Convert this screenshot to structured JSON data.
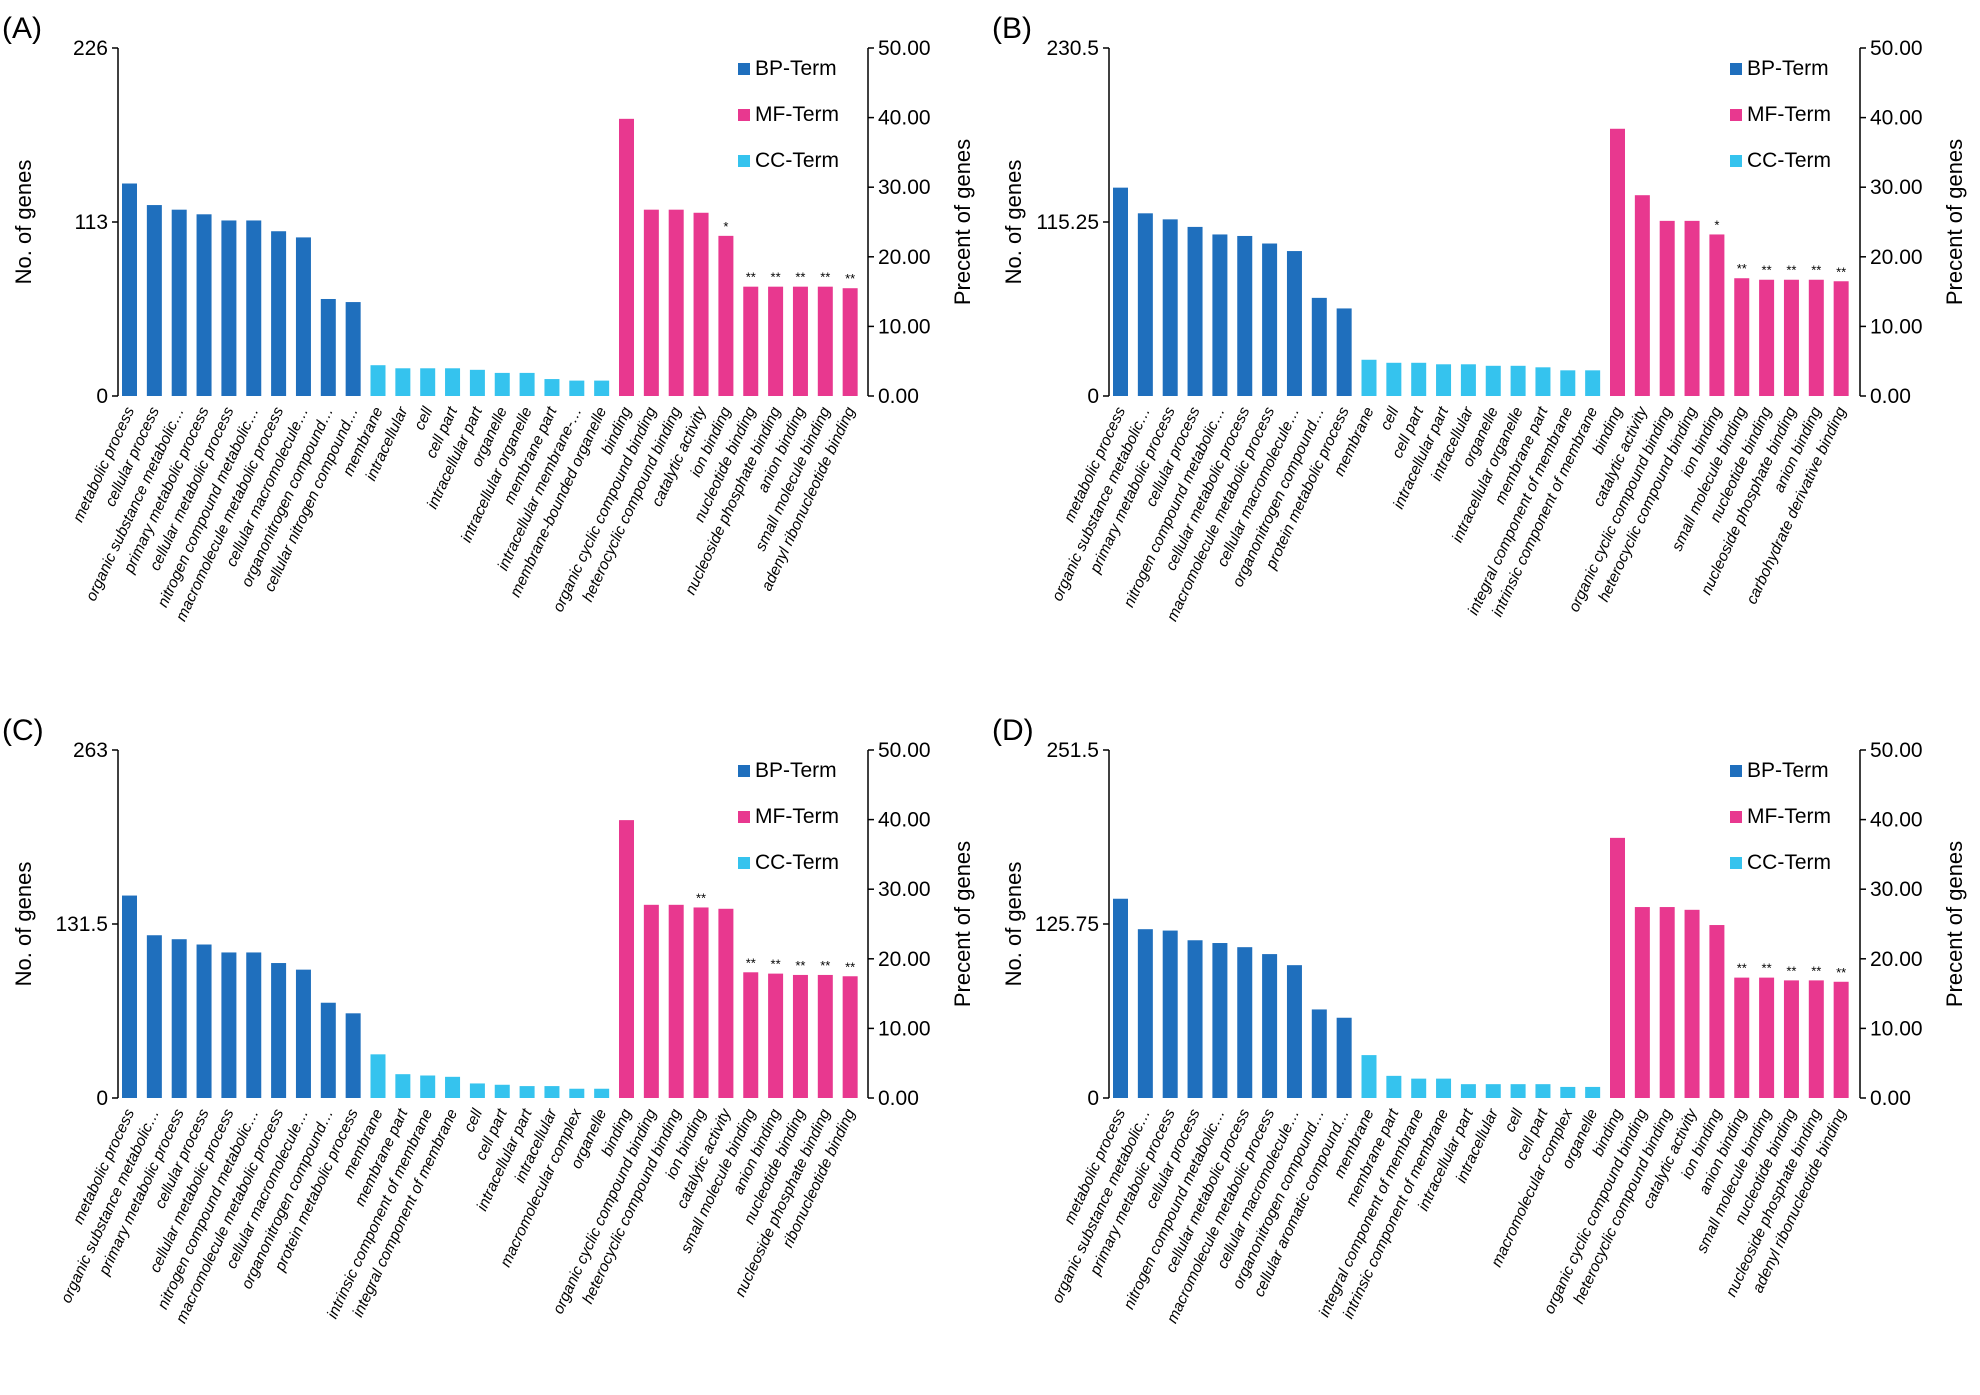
{
  "colors": {
    "BP": "#1f6fbd",
    "MF": "#e8388f",
    "CC": "#35c3ee"
  },
  "legend": [
    "BP-Term",
    "MF-Term",
    "CC-Term"
  ],
  "ylabel_left": "No. of genes",
  "ylabel_right": "Precent of genes",
  "chart_data": [
    {
      "type": "bar",
      "panel": "(A)",
      "left_ticks": [
        "226",
        "113",
        "0"
      ],
      "left_max": 226,
      "right_ticks": [
        "50.00",
        "40.00",
        "30.00",
        "20.00",
        "10.00",
        "0.00"
      ],
      "ylim_left": [
        0,
        226
      ],
      "ylim_right": [
        0,
        50
      ],
      "categories": [
        "metabolic process",
        "cellular process",
        "organic substance metabolic…",
        "primary metabolic process",
        "cellular metabolic process",
        "nitrogen compound metabolic…",
        "macromolecule metabolic process",
        "cellular macromolecule…",
        "organonitrogen compound…",
        "cellular nitrogen compound…",
        "membrane",
        "intracellular",
        "cell",
        "cell part",
        "intracellular part",
        "organelle",
        "intracellular organelle",
        "membrane part",
        "intracellular membrane-…",
        "membrane-bounded organelle",
        "binding",
        "organic cyclic compound binding",
        "heterocyclic compound binding",
        "catalytic activity",
        "ion binding",
        "nucleotide binding",
        "nucleoside phosphate binding",
        "anion binding",
        "small molecule binding",
        "adenyl ribonucleotide binding"
      ],
      "groups": [
        "BP",
        "BP",
        "BP",
        "BP",
        "BP",
        "BP",
        "BP",
        "BP",
        "BP",
        "BP",
        "CC",
        "CC",
        "CC",
        "CC",
        "CC",
        "CC",
        "CC",
        "CC",
        "CC",
        "CC",
        "MF",
        "MF",
        "MF",
        "MF",
        "MF",
        "MF",
        "MF",
        "MF",
        "MF",
        "MF"
      ],
      "values": [
        138,
        124,
        121,
        118,
        114,
        114,
        107,
        103,
        63,
        61,
        20,
        18,
        18,
        18,
        17,
        15,
        15,
        11,
        10,
        10,
        180,
        121,
        121,
        119,
        104,
        71,
        71,
        71,
        71,
        70
      ],
      "stars": [
        "",
        "",
        "",
        "",
        "",
        "",
        "",
        "",
        "",
        "",
        "",
        "",
        "",
        "",
        "",
        "",
        "",
        "",
        "",
        "",
        "",
        "",
        "",
        "",
        "*",
        "**",
        "**",
        "**",
        "**",
        "**"
      ]
    },
    {
      "type": "bar",
      "panel": "(B)",
      "left_ticks": [
        "230.5",
        "115.25",
        "0"
      ],
      "left_max": 230.5,
      "right_ticks": [
        "50.00",
        "40.00",
        "30.00",
        "20.00",
        "10.00",
        "0.00"
      ],
      "ylim_left": [
        0,
        230.5
      ],
      "ylim_right": [
        0,
        50
      ],
      "categories": [
        "metabolic process",
        "organic substance metabolic…",
        "primary metabolic process",
        "cellular process",
        "nitrogen compound metabolic…",
        "cellular metabolic process",
        "macromolecule metabolic process",
        "cellular macromolecule…",
        "organonitrogen compound…",
        "protein metabolic process",
        "membrane",
        "cell",
        "cell part",
        "intracellular part",
        "intracellular",
        "organelle",
        "intracellular organelle",
        "membrane part",
        "integral component of membrane",
        "intrinsic component of membrane",
        "binding",
        "catalytic activity",
        "organic cyclic compound binding",
        "heterocyclic compound binding",
        "ion binding",
        "small molecule binding",
        "nucleotide binding",
        "nucleoside phosphate binding",
        "anion binding",
        "carbohydrate derivative binding"
      ],
      "groups": [
        "BP",
        "BP",
        "BP",
        "BP",
        "BP",
        "BP",
        "BP",
        "BP",
        "BP",
        "BP",
        "CC",
        "CC",
        "CC",
        "CC",
        "CC",
        "CC",
        "CC",
        "CC",
        "CC",
        "CC",
        "MF",
        "MF",
        "MF",
        "MF",
        "MF",
        "MF",
        "MF",
        "MF",
        "MF",
        "MF"
      ],
      "values": [
        138,
        121,
        117,
        112,
        107,
        106,
        101,
        96,
        65,
        58,
        24,
        22,
        22,
        21,
        21,
        20,
        20,
        19,
        17,
        17,
        177,
        133,
        116,
        116,
        107,
        78,
        77,
        77,
        77,
        76
      ],
      "stars": [
        "",
        "",
        "",
        "",
        "",
        "",
        "",
        "",
        "",
        "",
        "",
        "",
        "",
        "",
        "",
        "",
        "",
        "",
        "",
        "",
        "",
        "",
        "",
        "",
        "*",
        "**",
        "**",
        "**",
        "**",
        "**"
      ]
    },
    {
      "type": "bar",
      "panel": "(C)",
      "left_ticks": [
        "263",
        "131.5",
        "0"
      ],
      "left_max": 263,
      "right_ticks": [
        "50.00",
        "40.00",
        "30.00",
        "20.00",
        "10.00",
        "0.00"
      ],
      "ylim_left": [
        0,
        263
      ],
      "ylim_right": [
        0,
        50
      ],
      "categories": [
        "metabolic process",
        "organic substance metabolic…",
        "primary metabolic process",
        "cellular process",
        "cellular metabolic process",
        "nitrogen compound metabolic…",
        "macromolecule metabolic process",
        "cellular macromolecule…",
        "organonitrogen compound…",
        "protein metabolic process",
        "membrane",
        "membrane part",
        "intrinsic component of membrane",
        "integral component of membrane",
        "cell",
        "cell part",
        "intracellular part",
        "intracellular",
        "macromolecular complex",
        "organelle",
        "binding",
        "organic cyclic compound binding",
        "heterocyclic compound binding",
        "ion binding",
        "catalytic activity",
        "small molecule binding",
        "anion binding",
        "nucleotide binding",
        "nucleoside phosphate binding",
        "ribonucleotide binding"
      ],
      "groups": [
        "BP",
        "BP",
        "BP",
        "BP",
        "BP",
        "BP",
        "BP",
        "BP",
        "BP",
        "BP",
        "CC",
        "CC",
        "CC",
        "CC",
        "CC",
        "CC",
        "CC",
        "CC",
        "CC",
        "CC",
        "MF",
        "MF",
        "MF",
        "MF",
        "MF",
        "MF",
        "MF",
        "MF",
        "MF",
        "MF"
      ],
      "values": [
        153,
        123,
        120,
        116,
        110,
        110,
        102,
        97,
        72,
        64,
        33,
        18,
        17,
        16,
        11,
        10,
        9,
        9,
        7,
        7,
        210,
        146,
        146,
        144,
        143,
        95,
        94,
        93,
        93,
        92
      ],
      "stars": [
        "",
        "",
        "",
        "",
        "",
        "",
        "",
        "",
        "",
        "",
        "",
        "",
        "",
        "",
        "",
        "",
        "",
        "",
        "",
        "",
        "",
        "",
        "",
        "**",
        "",
        "**",
        "**",
        "**",
        "**",
        "**"
      ]
    },
    {
      "type": "bar",
      "panel": "(D)",
      "left_ticks": [
        "251.5",
        "125.75",
        "0"
      ],
      "left_max": 251.5,
      "right_ticks": [
        "50.00",
        "40.00",
        "30.00",
        "20.00",
        "10.00",
        "0.00"
      ],
      "ylim_left": [
        0,
        251.5
      ],
      "ylim_right": [
        0,
        50
      ],
      "categories": [
        "metabolic process",
        "organic substance metabolic…",
        "primary metabolic process",
        "cellular process",
        "nitrogen compound metabolic…",
        "cellular metabolic process",
        "macromolecule metabolic process",
        "cellular macromolecule…",
        "organonitrogen compound…",
        "cellular aromatic compound…",
        "membrane",
        "membrane part",
        "integral component of membrane",
        "intrinsic component of membrane",
        "intracellular part",
        "intracellular",
        "cell",
        "cell part",
        "macromolecular complex",
        "organelle",
        "binding",
        "organic cyclic compound binding",
        "heterocyclic compound binding",
        "catalytic activity",
        "ion binding",
        "anion binding",
        "small molecule binding",
        "nucleotide binding",
        "nucleoside phosphate binding",
        "adenyl ribonucleotide binding"
      ],
      "groups": [
        "BP",
        "BP",
        "BP",
        "BP",
        "BP",
        "BP",
        "BP",
        "BP",
        "BP",
        "BP",
        "CC",
        "CC",
        "CC",
        "CC",
        "CC",
        "CC",
        "CC",
        "CC",
        "CC",
        "CC",
        "MF",
        "MF",
        "MF",
        "MF",
        "MF",
        "MF",
        "MF",
        "MF",
        "MF",
        "MF"
      ],
      "values": [
        144,
        122,
        121,
        114,
        112,
        109,
        104,
        96,
        64,
        58,
        31,
        16,
        14,
        14,
        10,
        10,
        10,
        10,
        8,
        8,
        188,
        138,
        138,
        136,
        125,
        87,
        87,
        85,
        85,
        84
      ],
      "stars": [
        "",
        "",
        "",
        "",
        "",
        "",
        "",
        "",
        "",
        "",
        "",
        "",
        "",
        "",
        "",
        "",
        "",
        "",
        "",
        "",
        "",
        "",
        "",
        "",
        "",
        "**",
        "**",
        "**",
        "**",
        "**"
      ]
    }
  ]
}
